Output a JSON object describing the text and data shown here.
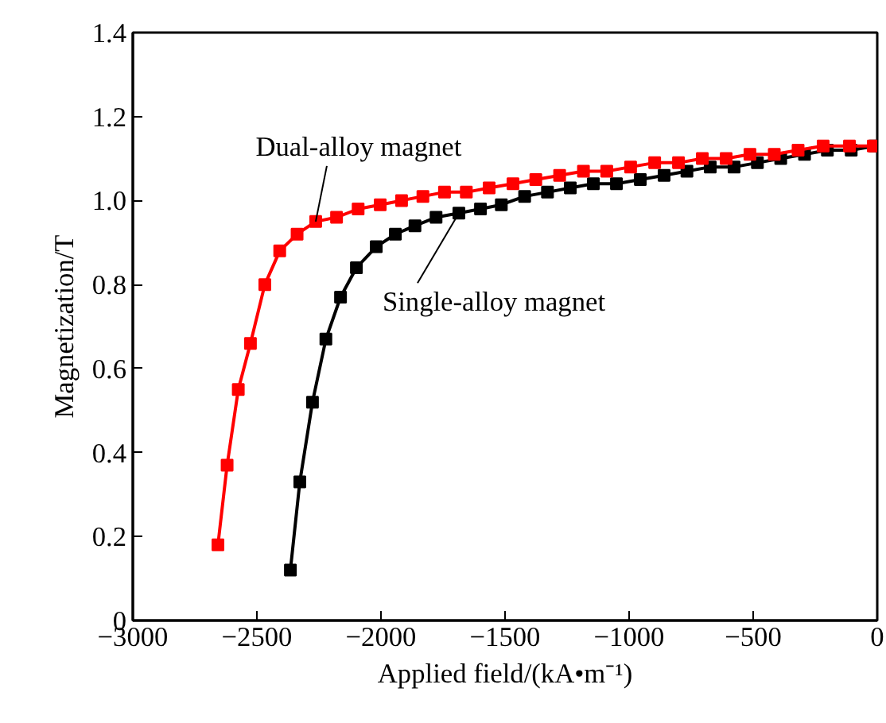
{
  "chart_data": {
    "type": "line",
    "xlabel": "Applied field/(kA•m⁻¹)",
    "ylabel": "Magnetization/T",
    "xlim": [
      -3000,
      0
    ],
    "ylim": [
      0,
      1.4
    ],
    "xticks": [
      {
        "value": -3000,
        "label": "−3000"
      },
      {
        "value": -2500,
        "label": "−2500"
      },
      {
        "value": -2000,
        "label": "−2000"
      },
      {
        "value": -1500,
        "label": "−1500"
      },
      {
        "value": -1000,
        "label": "−1000"
      },
      {
        "value": -500,
        "label": "−500"
      },
      0
    ],
    "yticks": [
      0,
      {
        "value": 0.2,
        "label": "0.2"
      },
      {
        "value": 0.4,
        "label": "0.4"
      },
      {
        "value": 0.6,
        "label": "0.6"
      },
      {
        "value": 0.8,
        "label": "0.8"
      },
      {
        "value": 1,
        "label": "1.0"
      },
      {
        "value": 1.2,
        "label": "1.2"
      },
      {
        "value": 1.4,
        "label": "1.4"
      }
    ],
    "grid": false,
    "marker": "square",
    "line_style": "solid",
    "series": [
      {
        "color": "#ff0000",
        "x": [
          -2657,
          -2620,
          -2575,
          -2526,
          -2468,
          -2408,
          -2338,
          -2263,
          -2179,
          -2092,
          -2003,
          -1917,
          -1831,
          -1744,
          -1656,
          -1564,
          -1468,
          -1376,
          -1280,
          -1184,
          -1090,
          -994,
          -897,
          -801,
          -705,
          -609,
          -513,
          -415,
          -319,
          -218,
          -112,
          -16
        ],
        "values": [
          0.18,
          0.37,
          0.55,
          0.66,
          0.8,
          0.88,
          0.92,
          0.95,
          0.96,
          0.98,
          0.99,
          1.0,
          1.01,
          1.02,
          1.02,
          1.03,
          1.04,
          1.05,
          1.06,
          1.07,
          1.07,
          1.08,
          1.09,
          1.09,
          1.1,
          1.1,
          1.11,
          1.11,
          1.12,
          1.13,
          1.13,
          1.13
        ]
      },
      {
        "color": "#000000",
        "x": [
          -2365,
          -2327,
          -2276,
          -2222,
          -2163,
          -2099,
          -2019,
          -1942,
          -1863,
          -1778,
          -1686,
          -1599,
          -1515,
          -1421,
          -1329,
          -1237,
          -1144,
          -1051,
          -955,
          -859,
          -767,
          -673,
          -577,
          -483,
          -389,
          -293,
          -201,
          -105,
          -9
        ],
        "values": [
          0.12,
          0.33,
          0.52,
          0.67,
          0.77,
          0.84,
          0.89,
          0.92,
          0.94,
          0.96,
          0.97,
          0.98,
          0.99,
          1.01,
          1.02,
          1.03,
          1.04,
          1.04,
          1.05,
          1.06,
          1.07,
          1.08,
          1.08,
          1.09,
          1.1,
          1.11,
          1.12,
          1.12,
          1.13
        ]
      }
    ],
    "annotations": [
      {
        "text": "Dual-alloy magnet",
        "x": -2263,
        "y": 0.95
      },
      {
        "text": "Single-alloy magnet",
        "x": -1686,
        "y": 0.97
      }
    ]
  }
}
